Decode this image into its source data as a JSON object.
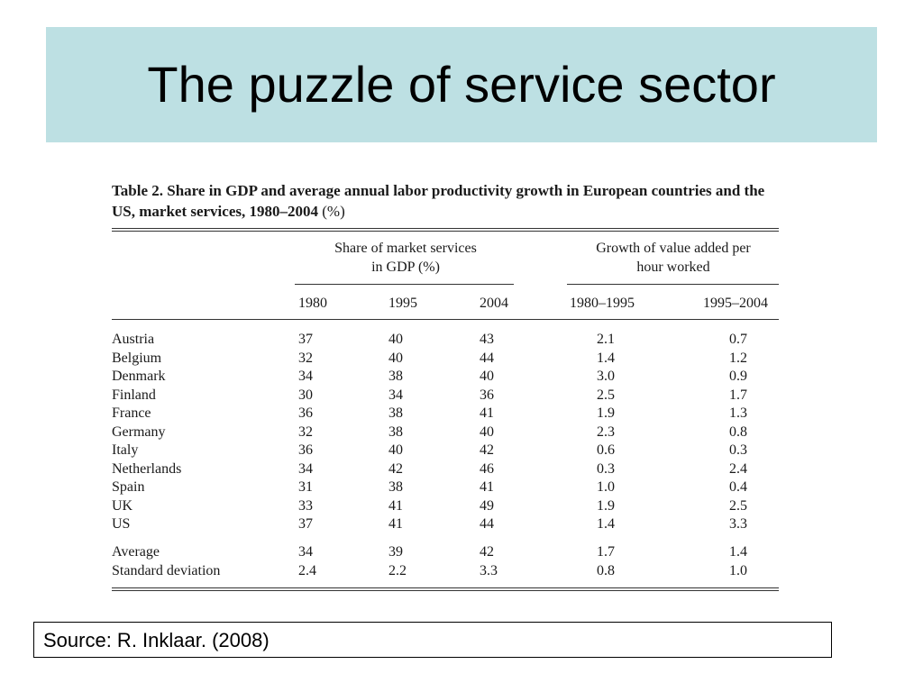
{
  "slide": {
    "title": "The puzzle of service sector",
    "source": "Source: R. Inklaar. (2008)"
  },
  "table": {
    "caption_bold": "Table 2.  Share in GDP and average annual labor productivity growth in European countries and the US, market services, 1980–2004",
    "caption_suffix": "(%)",
    "group_headers": [
      "Share of market services\nin GDP (%)",
      "Growth of value added per\nhour worked"
    ],
    "columns": [
      "1980",
      "1995",
      "2004",
      "1980–1995",
      "1995–2004"
    ],
    "rows": [
      [
        "Austria",
        "37",
        "40",
        "43",
        "2.1",
        "0.7"
      ],
      [
        "Belgium",
        "32",
        "40",
        "44",
        "1.4",
        "1.2"
      ],
      [
        "Denmark",
        "34",
        "38",
        "40",
        "3.0",
        "0.9"
      ],
      [
        "Finland",
        "30",
        "34",
        "36",
        "2.5",
        "1.7"
      ],
      [
        "France",
        "36",
        "38",
        "41",
        "1.9",
        "1.3"
      ],
      [
        "Germany",
        "32",
        "38",
        "40",
        "2.3",
        "0.8"
      ],
      [
        "Italy",
        "36",
        "40",
        "42",
        "0.6",
        "0.3"
      ],
      [
        "Netherlands",
        "34",
        "42",
        "46",
        "0.3",
        "2.4"
      ],
      [
        "Spain",
        "31",
        "38",
        "41",
        "1.0",
        "0.4"
      ],
      [
        "UK",
        "33",
        "41",
        "49",
        "1.9",
        "2.5"
      ],
      [
        "US",
        "37",
        "41",
        "44",
        "1.4",
        "3.3"
      ]
    ],
    "summary_rows": [
      [
        "Average",
        "34",
        "39",
        "42",
        "1.7",
        "1.4"
      ],
      [
        "Standard deviation",
        "2.4",
        "2.2",
        "3.3",
        "0.8",
        "1.0"
      ]
    ]
  }
}
